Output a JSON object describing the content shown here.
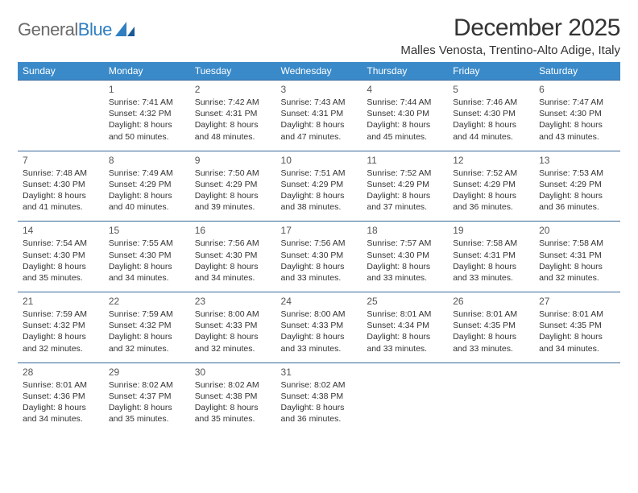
{
  "brand": {
    "part1": "General",
    "part2": "Blue"
  },
  "title": "December 2025",
  "location": "Malles Venosta, Trentino-Alto Adige, Italy",
  "colors": {
    "header_bg": "#3a8ac9",
    "row_border": "#3a6a9a",
    "brand_gray": "#6a6a6a",
    "brand_blue": "#2f7fc2"
  },
  "weekdays": [
    "Sunday",
    "Monday",
    "Tuesday",
    "Wednesday",
    "Thursday",
    "Friday",
    "Saturday"
  ],
  "weeks": [
    [
      null,
      {
        "n": "1",
        "sr": "Sunrise: 7:41 AM",
        "ss": "Sunset: 4:32 PM",
        "d1": "Daylight: 8 hours",
        "d2": "and 50 minutes."
      },
      {
        "n": "2",
        "sr": "Sunrise: 7:42 AM",
        "ss": "Sunset: 4:31 PM",
        "d1": "Daylight: 8 hours",
        "d2": "and 48 minutes."
      },
      {
        "n": "3",
        "sr": "Sunrise: 7:43 AM",
        "ss": "Sunset: 4:31 PM",
        "d1": "Daylight: 8 hours",
        "d2": "and 47 minutes."
      },
      {
        "n": "4",
        "sr": "Sunrise: 7:44 AM",
        "ss": "Sunset: 4:30 PM",
        "d1": "Daylight: 8 hours",
        "d2": "and 45 minutes."
      },
      {
        "n": "5",
        "sr": "Sunrise: 7:46 AM",
        "ss": "Sunset: 4:30 PM",
        "d1": "Daylight: 8 hours",
        "d2": "and 44 minutes."
      },
      {
        "n": "6",
        "sr": "Sunrise: 7:47 AM",
        "ss": "Sunset: 4:30 PM",
        "d1": "Daylight: 8 hours",
        "d2": "and 43 minutes."
      }
    ],
    [
      {
        "n": "7",
        "sr": "Sunrise: 7:48 AM",
        "ss": "Sunset: 4:30 PM",
        "d1": "Daylight: 8 hours",
        "d2": "and 41 minutes."
      },
      {
        "n": "8",
        "sr": "Sunrise: 7:49 AM",
        "ss": "Sunset: 4:29 PM",
        "d1": "Daylight: 8 hours",
        "d2": "and 40 minutes."
      },
      {
        "n": "9",
        "sr": "Sunrise: 7:50 AM",
        "ss": "Sunset: 4:29 PM",
        "d1": "Daylight: 8 hours",
        "d2": "and 39 minutes."
      },
      {
        "n": "10",
        "sr": "Sunrise: 7:51 AM",
        "ss": "Sunset: 4:29 PM",
        "d1": "Daylight: 8 hours",
        "d2": "and 38 minutes."
      },
      {
        "n": "11",
        "sr": "Sunrise: 7:52 AM",
        "ss": "Sunset: 4:29 PM",
        "d1": "Daylight: 8 hours",
        "d2": "and 37 minutes."
      },
      {
        "n": "12",
        "sr": "Sunrise: 7:52 AM",
        "ss": "Sunset: 4:29 PM",
        "d1": "Daylight: 8 hours",
        "d2": "and 36 minutes."
      },
      {
        "n": "13",
        "sr": "Sunrise: 7:53 AM",
        "ss": "Sunset: 4:29 PM",
        "d1": "Daylight: 8 hours",
        "d2": "and 36 minutes."
      }
    ],
    [
      {
        "n": "14",
        "sr": "Sunrise: 7:54 AM",
        "ss": "Sunset: 4:30 PM",
        "d1": "Daylight: 8 hours",
        "d2": "and 35 minutes."
      },
      {
        "n": "15",
        "sr": "Sunrise: 7:55 AM",
        "ss": "Sunset: 4:30 PM",
        "d1": "Daylight: 8 hours",
        "d2": "and 34 minutes."
      },
      {
        "n": "16",
        "sr": "Sunrise: 7:56 AM",
        "ss": "Sunset: 4:30 PM",
        "d1": "Daylight: 8 hours",
        "d2": "and 34 minutes."
      },
      {
        "n": "17",
        "sr": "Sunrise: 7:56 AM",
        "ss": "Sunset: 4:30 PM",
        "d1": "Daylight: 8 hours",
        "d2": "and 33 minutes."
      },
      {
        "n": "18",
        "sr": "Sunrise: 7:57 AM",
        "ss": "Sunset: 4:30 PM",
        "d1": "Daylight: 8 hours",
        "d2": "and 33 minutes."
      },
      {
        "n": "19",
        "sr": "Sunrise: 7:58 AM",
        "ss": "Sunset: 4:31 PM",
        "d1": "Daylight: 8 hours",
        "d2": "and 33 minutes."
      },
      {
        "n": "20",
        "sr": "Sunrise: 7:58 AM",
        "ss": "Sunset: 4:31 PM",
        "d1": "Daylight: 8 hours",
        "d2": "and 32 minutes."
      }
    ],
    [
      {
        "n": "21",
        "sr": "Sunrise: 7:59 AM",
        "ss": "Sunset: 4:32 PM",
        "d1": "Daylight: 8 hours",
        "d2": "and 32 minutes."
      },
      {
        "n": "22",
        "sr": "Sunrise: 7:59 AM",
        "ss": "Sunset: 4:32 PM",
        "d1": "Daylight: 8 hours",
        "d2": "and 32 minutes."
      },
      {
        "n": "23",
        "sr": "Sunrise: 8:00 AM",
        "ss": "Sunset: 4:33 PM",
        "d1": "Daylight: 8 hours",
        "d2": "and 32 minutes."
      },
      {
        "n": "24",
        "sr": "Sunrise: 8:00 AM",
        "ss": "Sunset: 4:33 PM",
        "d1": "Daylight: 8 hours",
        "d2": "and 33 minutes."
      },
      {
        "n": "25",
        "sr": "Sunrise: 8:01 AM",
        "ss": "Sunset: 4:34 PM",
        "d1": "Daylight: 8 hours",
        "d2": "and 33 minutes."
      },
      {
        "n": "26",
        "sr": "Sunrise: 8:01 AM",
        "ss": "Sunset: 4:35 PM",
        "d1": "Daylight: 8 hours",
        "d2": "and 33 minutes."
      },
      {
        "n": "27",
        "sr": "Sunrise: 8:01 AM",
        "ss": "Sunset: 4:35 PM",
        "d1": "Daylight: 8 hours",
        "d2": "and 34 minutes."
      }
    ],
    [
      {
        "n": "28",
        "sr": "Sunrise: 8:01 AM",
        "ss": "Sunset: 4:36 PM",
        "d1": "Daylight: 8 hours",
        "d2": "and 34 minutes."
      },
      {
        "n": "29",
        "sr": "Sunrise: 8:02 AM",
        "ss": "Sunset: 4:37 PM",
        "d1": "Daylight: 8 hours",
        "d2": "and 35 minutes."
      },
      {
        "n": "30",
        "sr": "Sunrise: 8:02 AM",
        "ss": "Sunset: 4:38 PM",
        "d1": "Daylight: 8 hours",
        "d2": "and 35 minutes."
      },
      {
        "n": "31",
        "sr": "Sunrise: 8:02 AM",
        "ss": "Sunset: 4:38 PM",
        "d1": "Daylight: 8 hours",
        "d2": "and 36 minutes."
      },
      null,
      null,
      null
    ]
  ]
}
